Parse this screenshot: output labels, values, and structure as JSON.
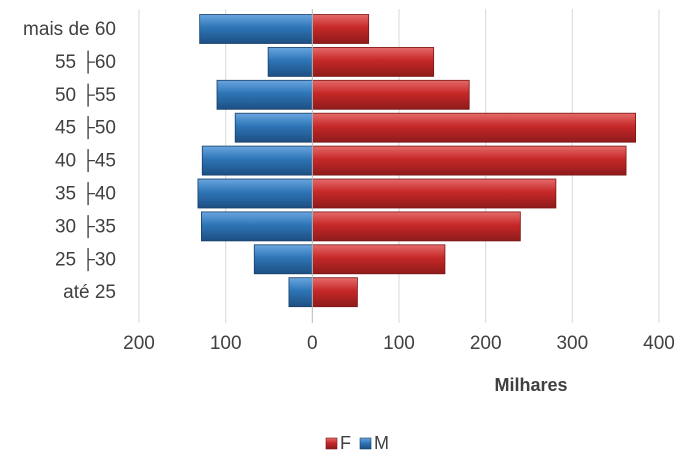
{
  "chart_data": {
    "type": "bar",
    "orientation": "horizontal",
    "layout": "population-pyramid",
    "categories": [
      "até 25",
      "25 ├30",
      "30 ├35",
      "35 ├40",
      "40 ├45",
      "45 ├50",
      "50 ├55",
      "55 ├60",
      "mais de 60"
    ],
    "series": [
      {
        "name": "F",
        "color": "#c0392b",
        "direction": "right",
        "values": [
          52,
          153,
          240,
          281,
          362,
          373,
          181,
          140,
          65
        ]
      },
      {
        "name": "M",
        "color": "#2e75b6",
        "direction": "left",
        "values": [
          27,
          67,
          128,
          132,
          127,
          89,
          110,
          51,
          130
        ]
      }
    ],
    "xlim": [
      -200,
      400
    ],
    "xticks": [
      -200,
      -100,
      0,
      100,
      200,
      300,
      400
    ],
    "xtick_labels": [
      "200",
      "100",
      "0",
      "100",
      "200",
      "300",
      "400"
    ],
    "xlabel": "Milhares",
    "ylabel": "",
    "title": "",
    "grid": "vertical",
    "legend": "bottom"
  }
}
